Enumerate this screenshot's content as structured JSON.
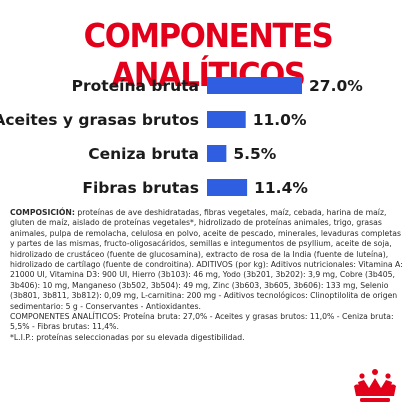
{
  "title": "COMPONENTES ANALÍTICOS",
  "chart_data": {
    "type": "bar",
    "orientation": "horizontal",
    "categories": [
      "Proteína bruta",
      "Aceites y grasas brutos",
      "Ceniza bruta",
      "Fibras brutas"
    ],
    "values": [
      27.0,
      11.0,
      5.5,
      11.4
    ],
    "value_labels": [
      "27.0%",
      "11.0%",
      "5.5%",
      "11.4%"
    ],
    "unit": "%",
    "title": "COMPONENTES ANALÍTICOS",
    "xlim": [
      0,
      27.0
    ],
    "grid": false,
    "bar_color": "#2f5fe0"
  },
  "composition": {
    "heading": "COMPOSICIÓN:",
    "text": " proteínas de ave deshidratadas, fibras vegetales, maíz, cebada, harina de maíz, gluten de maíz, aislado de proteínas vegetales*, hidrolizado de proteínas animales, trigo, grasas animales, pulpa de remolacha, celulosa en polvo, aceite de pescado, minerales, levaduras completas y partes de las mismas, fructo-oligosacáridos, semillas e integumentos de psyllium, aceite de soja, hidrolizado de crustáceo (fuente de glucosamina), extracto de rosa de la India (fuente de luteína), hidrolizado de cartílago (fuente de condroitina). ADITIVOS (por kg): Aditivos nutricionales: Vitamina A: 21000 UI, Vitamina D3: 900 UI, Hierro (3b103): 46 mg, Yodo (3b201, 3b202): 3,9 mg, Cobre (3b405, 3b406): 10 mg, Manganeso (3b502, 3b504): 49 mg, Zinc (3b603, 3b605, 3b606): 133 mg, Selenio (3b801, 3b811, 3b812): 0,09 mg, L-carnitina: 200 mg - Aditivos tecnológicos: Clinoptilolita de origen sedimentario: 5 g - Conservantes - Antioxidantes.",
    "analytical": "COMPONENTES ANALÍTICOS: Proteína bruta: 27,0% - Aceites y grasas brutos: 11,0% - Ceniza bruta: 5,5% - Fibras brutas: 11,4%.",
    "footnote": "*L.I.P.: proteínas seleccionadas por su elevada digestibilidad."
  },
  "colors": {
    "title": "#e3001b",
    "bar": "#2f5fe0",
    "text": "#1b1b1b",
    "logo": "#e3001b"
  },
  "logo_icon": "royal-crown-logo"
}
